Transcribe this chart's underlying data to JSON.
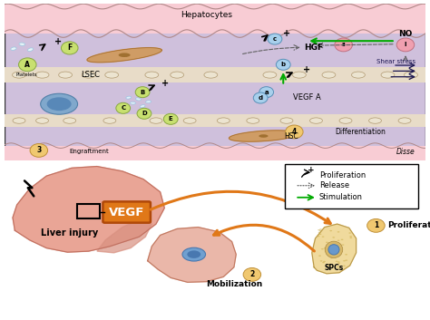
{
  "top_bg": "#cfc0dc",
  "top_bar_color": "#f5c8cc",
  "lsec_band_color": "#e8dcc8",
  "bottom_bg": "#ffffff",
  "title_hepatocytes": "Hepatocytes",
  "title_lsec": "LSEC",
  "title_hgf": "HGF",
  "title_vegf": "VEGF A",
  "title_no": "NO",
  "title_shear": "Shear stress",
  "title_diff": "Differentiation",
  "title_disse": "Disse",
  "title_engraft": "Engraftment",
  "title_hsc": "HSC",
  "liver_injury": "Liver injury",
  "vegf_label": "VEGF",
  "mobilization": "Mobilization",
  "proliferation": "Proliferation",
  "spcs": "SPCs",
  "legend_prolif": "Proliferation",
  "legend_release": "Release",
  "legend_stimul": "Stimulation",
  "orange": "#e07818",
  "green": "#00aa00",
  "purple_dark": "#1a1550",
  "cell_orange": "#d49050",
  "yellow_green": "#c8d860",
  "light_blue": "#90c0e0",
  "light_pink": "#f0a0b0"
}
